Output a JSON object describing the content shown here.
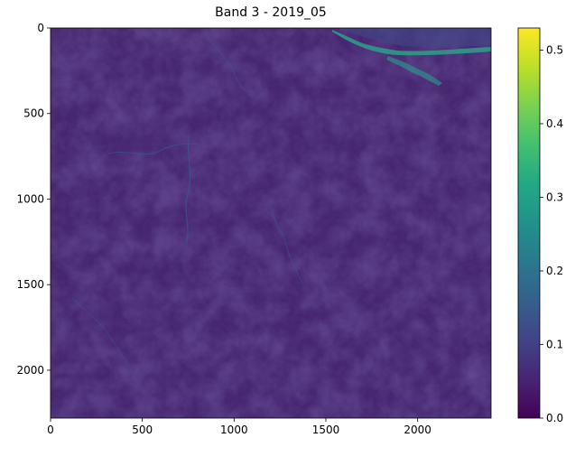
{
  "chart_data": {
    "type": "heatmap",
    "title": "Band 3 - 2019_05",
    "xlabel": "",
    "ylabel": "",
    "xlim": [
      0,
      2400
    ],
    "ylim": [
      2280,
      0
    ],
    "x_ticks": [
      0,
      500,
      1000,
      1500,
      2000
    ],
    "y_ticks": [
      0,
      500,
      1000,
      1500,
      2000
    ],
    "colormap": "viridis",
    "colorbar": {
      "range": [
        0.0,
        0.53
      ],
      "ticks": [
        0.0,
        0.1,
        0.2,
        0.3,
        0.4,
        0.5
      ],
      "tick_labels": [
        "0.0",
        "0.1",
        "0.2",
        "0.3",
        "0.4",
        "0.5"
      ]
    },
    "background_value": 0.07,
    "grid": false
  }
}
